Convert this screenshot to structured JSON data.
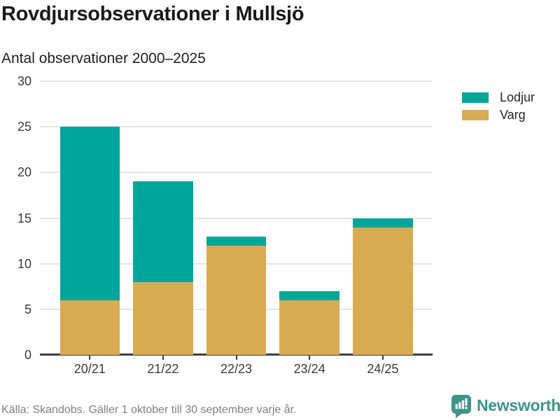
{
  "header": {
    "title": "Rovdjursobservationer i Mullsjö",
    "subtitle": "Antal observationer 2000–2025"
  },
  "chart_data": {
    "type": "bar",
    "stacked": true,
    "title": "Rovdjursobservationer i Mullsjö",
    "subtitle": "Antal observationer 2000–2025",
    "categories": [
      "20/21",
      "21/22",
      "22/23",
      "23/24",
      "24/25"
    ],
    "series": [
      {
        "name": "Lodjur",
        "color": "#00a699",
        "values": [
          19,
          11,
          1,
          1,
          1
        ]
      },
      {
        "name": "Varg",
        "color": "#d9ab55",
        "values": [
          6,
          8,
          12,
          6,
          14
        ]
      }
    ],
    "stack_totals": [
      25,
      19,
      13,
      7,
      15
    ],
    "xlabel": "",
    "ylabel": "",
    "ylim": [
      0,
      30
    ],
    "yticks": [
      0,
      5,
      10,
      15,
      20,
      25,
      30
    ],
    "grid": true,
    "legend_position": "right"
  },
  "legend": {
    "items": [
      {
        "label": "Lodjur",
        "color": "#00a699"
      },
      {
        "label": "Varg",
        "color": "#d9ab55"
      }
    ]
  },
  "footer": {
    "source": "Källa: Skandobs. Gäller 1 oktober till 30 september varje år.",
    "brand": "Newsworthy",
    "brand_color": "#3f948b",
    "brand_icon": "speech-bubble-bar-chart-icon"
  }
}
